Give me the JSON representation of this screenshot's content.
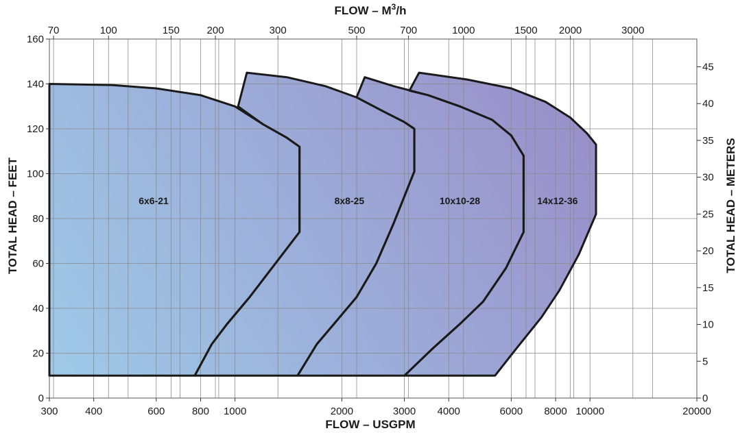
{
  "chart_data": {
    "type": "area",
    "title": "",
    "xlabel_bottom": "FLOW – USGPM",
    "xlabel_top": "FLOW – M",
    "xlabel_top_sup": "3",
    "xlabel_top_suffix": "/h",
    "ylabel_left": "TOTAL HEAD – FEET",
    "ylabel_right": "TOTAL HEAD – METERS",
    "x_scale": "log",
    "xlim": [
      300,
      20000
    ],
    "ylim": [
      0,
      160
    ],
    "y2lim_m": [
      0,
      48.8
    ],
    "grid": true,
    "x_ticks_bottom": [
      300,
      400,
      600,
      800,
      1000,
      2000,
      3000,
      4000,
      6000,
      8000,
      10000,
      20000
    ],
    "x_tick_labels_bottom": [
      "300",
      "400",
      "600",
      "800",
      "1000",
      "2000",
      "3000",
      "4000",
      "6000",
      "8000",
      "10000",
      "20000"
    ],
    "x_ticks_top_m3h": [
      70,
      100,
      150,
      200,
      300,
      500,
      700,
      1000,
      1500,
      2000,
      3000
    ],
    "x_tick_labels_top": [
      "70",
      "100",
      "150",
      "200",
      "300",
      "500",
      "700",
      "1000",
      "1500",
      "2000",
      "3000"
    ],
    "y_ticks": [
      0,
      20,
      40,
      60,
      80,
      100,
      120,
      140,
      160
    ],
    "y_tick_labels": [
      "0",
      "20",
      "40",
      "60",
      "80",
      "100",
      "120",
      "140",
      "160"
    ],
    "y2_ticks_m": [
      0,
      5,
      10,
      15,
      20,
      25,
      30,
      35,
      40,
      45
    ],
    "y2_tick_labels": [
      "0",
      "5",
      "10",
      "15",
      "20",
      "25",
      "30",
      "35",
      "40",
      "45"
    ],
    "extra_vertical_gridlines": [
      500,
      700,
      900,
      7000,
      9000,
      15000
    ],
    "series": [
      {
        "name": "6x6-21",
        "label_pos": [
          590,
          88
        ],
        "outline": [
          [
            300,
            140
          ],
          [
            450,
            139.5
          ],
          [
            600,
            138
          ],
          [
            800,
            135
          ],
          [
            1000,
            130
          ],
          [
            1200,
            122
          ],
          [
            1400,
            116
          ],
          [
            1520,
            112
          ],
          [
            1520,
            74
          ],
          [
            1300,
            60
          ],
          [
            1100,
            45
          ],
          [
            950,
            33
          ],
          [
            860,
            24
          ],
          [
            770,
            10
          ],
          [
            300,
            10
          ]
        ]
      },
      {
        "name": "8x8-25",
        "label_pos": [
          2100,
          88
        ],
        "outline": [
          [
            1020,
            130
          ],
          [
            1080,
            145
          ],
          [
            1400,
            143
          ],
          [
            1800,
            139
          ],
          [
            2200,
            134
          ],
          [
            2600,
            128
          ],
          [
            3000,
            123
          ],
          [
            3200,
            120
          ],
          [
            3200,
            101
          ],
          [
            2800,
            78
          ],
          [
            2500,
            60
          ],
          [
            2200,
            45
          ],
          [
            1900,
            33
          ],
          [
            1700,
            24
          ],
          [
            1500,
            10
          ],
          [
            770,
            10
          ],
          [
            860,
            24
          ],
          [
            950,
            33
          ],
          [
            1100,
            45
          ],
          [
            1300,
            60
          ],
          [
            1520,
            74
          ],
          [
            1520,
            112
          ],
          [
            1400,
            116
          ],
          [
            1200,
            122
          ]
        ]
      },
      {
        "name": "10x10-28",
        "label_pos": [
          4300,
          88
        ],
        "outline": [
          [
            2200,
            134
          ],
          [
            2320,
            143
          ],
          [
            2800,
            139
          ],
          [
            3500,
            135
          ],
          [
            4300,
            130
          ],
          [
            5300,
            124
          ],
          [
            6000,
            117
          ],
          [
            6500,
            108
          ],
          [
            6500,
            74
          ],
          [
            5800,
            58
          ],
          [
            5000,
            43
          ],
          [
            4300,
            33
          ],
          [
            3600,
            22
          ],
          [
            3000,
            10
          ],
          [
            1500,
            10
          ],
          [
            1700,
            24
          ],
          [
            1900,
            33
          ],
          [
            2200,
            45
          ],
          [
            2500,
            60
          ],
          [
            2800,
            78
          ],
          [
            3200,
            101
          ],
          [
            3200,
            120
          ],
          [
            3000,
            123
          ],
          [
            2600,
            128
          ]
        ]
      },
      {
        "name": "14x12-36",
        "label_pos": [
          8100,
          88
        ],
        "outline": [
          [
            3100,
            137
          ],
          [
            3300,
            145
          ],
          [
            4500,
            142
          ],
          [
            6000,
            138
          ],
          [
            7500,
            132
          ],
          [
            8800,
            125
          ],
          [
            9800,
            118
          ],
          [
            10400,
            113
          ],
          [
            10400,
            82
          ],
          [
            9300,
            64
          ],
          [
            8200,
            48
          ],
          [
            7300,
            36
          ],
          [
            6200,
            22
          ],
          [
            5400,
            10
          ],
          [
            3000,
            10
          ],
          [
            3600,
            22
          ],
          [
            4300,
            33
          ],
          [
            5000,
            43
          ],
          [
            5800,
            58
          ],
          [
            6500,
            74
          ],
          [
            6500,
            108
          ],
          [
            6000,
            117
          ],
          [
            5300,
            124
          ],
          [
            4300,
            130
          ],
          [
            3500,
            135
          ]
        ]
      }
    ],
    "fill_gradient": [
      "#9ecbe8",
      "#9a8cc8"
    ]
  }
}
